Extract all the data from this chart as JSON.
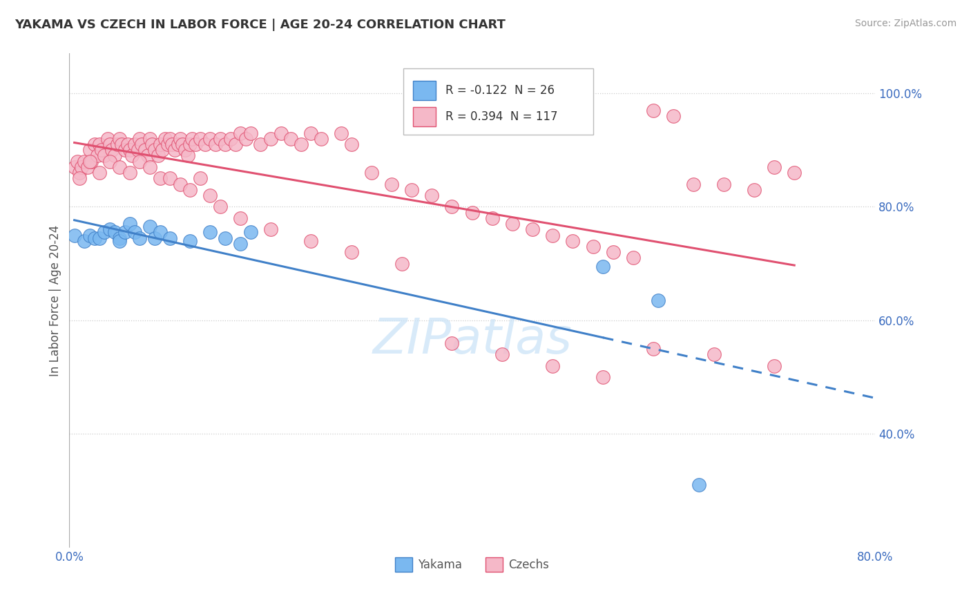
{
  "title": "YAKAMA VS CZECH IN LABOR FORCE | AGE 20-24 CORRELATION CHART",
  "source": "Source: ZipAtlas.com",
  "ylabel": "In Labor Force | Age 20-24",
  "xlim": [
    0.0,
    0.8
  ],
  "ylim": [
    0.2,
    1.07
  ],
  "yticks_right": [
    0.4,
    0.6,
    0.8,
    1.0
  ],
  "ytick_labels_right": [
    "40.0%",
    "60.0%",
    "80.0%",
    "100.0%"
  ],
  "blue_R": -0.122,
  "blue_N": 26,
  "pink_R": 0.394,
  "pink_N": 117,
  "blue_color": "#7ab8f0",
  "pink_color": "#f5b8c8",
  "blue_line_color": "#4080c8",
  "pink_line_color": "#e05070",
  "legend_label_blue": "Yakama",
  "legend_label_pink": "Czechs",
  "blue_scatter_x": [
    0.005,
    0.015,
    0.02,
    0.025,
    0.03,
    0.035,
    0.04,
    0.045,
    0.05,
    0.05,
    0.055,
    0.06,
    0.065,
    0.07,
    0.08,
    0.085,
    0.09,
    0.1,
    0.12,
    0.14,
    0.155,
    0.17,
    0.18,
    0.53,
    0.585,
    0.625
  ],
  "blue_scatter_y": [
    0.75,
    0.74,
    0.75,
    0.745,
    0.745,
    0.755,
    0.76,
    0.755,
    0.745,
    0.74,
    0.755,
    0.77,
    0.755,
    0.745,
    0.765,
    0.745,
    0.755,
    0.745,
    0.74,
    0.755,
    0.745,
    0.735,
    0.755,
    0.695,
    0.635,
    0.31
  ],
  "pink_scatter_x": [
    0.005,
    0.008,
    0.01,
    0.012,
    0.015,
    0.018,
    0.02,
    0.022,
    0.025,
    0.028,
    0.03,
    0.032,
    0.035,
    0.038,
    0.04,
    0.042,
    0.045,
    0.048,
    0.05,
    0.052,
    0.055,
    0.058,
    0.06,
    0.062,
    0.065,
    0.068,
    0.07,
    0.072,
    0.075,
    0.078,
    0.08,
    0.082,
    0.085,
    0.088,
    0.09,
    0.092,
    0.095,
    0.098,
    0.1,
    0.102,
    0.105,
    0.108,
    0.11,
    0.112,
    0.115,
    0.118,
    0.12,
    0.122,
    0.125,
    0.13,
    0.135,
    0.14,
    0.145,
    0.15,
    0.155,
    0.16,
    0.165,
    0.17,
    0.175,
    0.18,
    0.19,
    0.2,
    0.21,
    0.22,
    0.23,
    0.24,
    0.25,
    0.27,
    0.28,
    0.3,
    0.32,
    0.34,
    0.36,
    0.38,
    0.4,
    0.42,
    0.44,
    0.46,
    0.48,
    0.5,
    0.52,
    0.54,
    0.56,
    0.58,
    0.6,
    0.62,
    0.65,
    0.68,
    0.7,
    0.72,
    0.01,
    0.02,
    0.03,
    0.04,
    0.05,
    0.06,
    0.07,
    0.08,
    0.09,
    0.1,
    0.11,
    0.12,
    0.13,
    0.14,
    0.15,
    0.17,
    0.2,
    0.24,
    0.28,
    0.33,
    0.38,
    0.43,
    0.48,
    0.53,
    0.58,
    0.64,
    0.7
  ],
  "pink_scatter_y": [
    0.87,
    0.88,
    0.86,
    0.87,
    0.88,
    0.87,
    0.9,
    0.88,
    0.91,
    0.89,
    0.91,
    0.9,
    0.89,
    0.92,
    0.91,
    0.9,
    0.89,
    0.91,
    0.92,
    0.91,
    0.9,
    0.91,
    0.9,
    0.89,
    0.91,
    0.9,
    0.92,
    0.91,
    0.9,
    0.89,
    0.92,
    0.91,
    0.9,
    0.89,
    0.91,
    0.9,
    0.92,
    0.91,
    0.92,
    0.91,
    0.9,
    0.91,
    0.92,
    0.91,
    0.9,
    0.89,
    0.91,
    0.92,
    0.91,
    0.92,
    0.91,
    0.92,
    0.91,
    0.92,
    0.91,
    0.92,
    0.91,
    0.93,
    0.92,
    0.93,
    0.91,
    0.92,
    0.93,
    0.92,
    0.91,
    0.93,
    0.92,
    0.93,
    0.91,
    0.86,
    0.84,
    0.83,
    0.82,
    0.8,
    0.79,
    0.78,
    0.77,
    0.76,
    0.75,
    0.74,
    0.73,
    0.72,
    0.71,
    0.97,
    0.96,
    0.84,
    0.84,
    0.83,
    0.87,
    0.86,
    0.85,
    0.88,
    0.86,
    0.88,
    0.87,
    0.86,
    0.88,
    0.87,
    0.85,
    0.85,
    0.84,
    0.83,
    0.85,
    0.82,
    0.8,
    0.78,
    0.76,
    0.74,
    0.72,
    0.7,
    0.56,
    0.54,
    0.52,
    0.5,
    0.55,
    0.54,
    0.52
  ]
}
